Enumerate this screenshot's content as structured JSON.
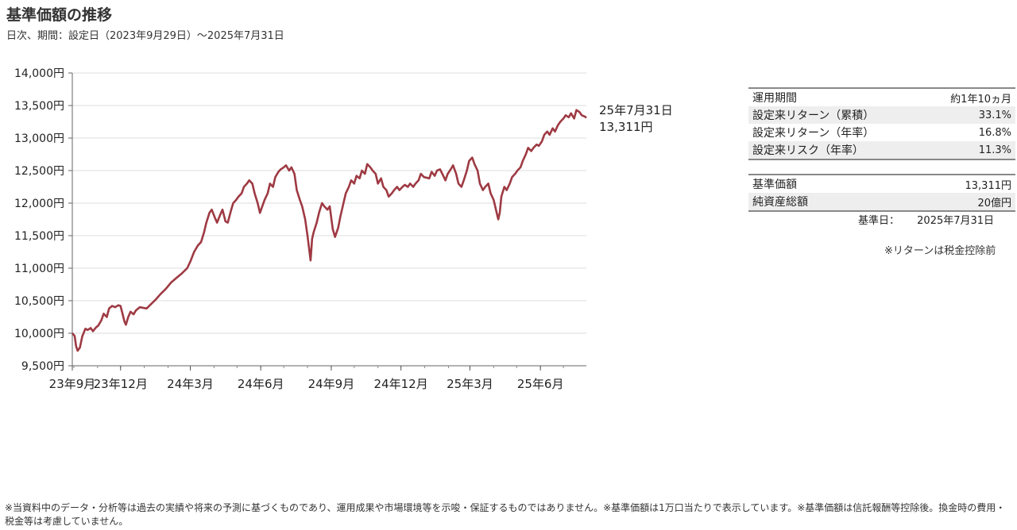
{
  "header": {
    "title": "基準価額の推移",
    "subtitle": "日次、期間：設定日（2023年9月29日）～2025年7月31日"
  },
  "chart_data": {
    "type": "line",
    "ylim": [
      9500,
      14000
    ],
    "yticks": [
      9500,
      10000,
      10500,
      11000,
      11500,
      12000,
      12500,
      13000,
      13500,
      14000
    ],
    "ytick_labels": [
      "9,500円",
      "10,000円",
      "10,500円",
      "11,000円",
      "11,500円",
      "12,000円",
      "12,500円",
      "13,000円",
      "13,500円",
      "14,000円"
    ],
    "xticks": [
      "23年9月",
      "23年12月",
      "24年3月",
      "24年6月",
      "24年9月",
      "24年12月",
      "25年3月",
      "25年6月"
    ],
    "x_start": "2023-09-29",
    "x_end": "2025-07-31",
    "line_color": "#9e3a43",
    "grid": true,
    "end_annotation": {
      "date": "25年7月31日",
      "value": "13,311円"
    },
    "series": [
      {
        "values": [
          [
            "2023-09-29",
            10000
          ],
          [
            "2023-10-02",
            9960
          ],
          [
            "2023-10-04",
            9800
          ],
          [
            "2023-10-06",
            9730
          ],
          [
            "2023-10-09",
            9780
          ],
          [
            "2023-10-12",
            9950
          ],
          [
            "2023-10-16",
            10070
          ],
          [
            "2023-10-19",
            10050
          ],
          [
            "2023-10-23",
            10080
          ],
          [
            "2023-10-26",
            10030
          ],
          [
            "2023-10-30",
            10090
          ],
          [
            "2023-11-02",
            10120
          ],
          [
            "2023-11-06",
            10200
          ],
          [
            "2023-11-09",
            10300
          ],
          [
            "2023-11-13",
            10250
          ],
          [
            "2023-11-16",
            10380
          ],
          [
            "2023-11-20",
            10420
          ],
          [
            "2023-11-24",
            10400
          ],
          [
            "2023-11-28",
            10430
          ],
          [
            "2023-12-01",
            10420
          ],
          [
            "2023-12-04",
            10280
          ],
          [
            "2023-12-06",
            10180
          ],
          [
            "2023-12-08",
            10130
          ],
          [
            "2023-12-11",
            10250
          ],
          [
            "2023-12-14",
            10330
          ],
          [
            "2023-12-18",
            10290
          ],
          [
            "2023-12-21",
            10350
          ],
          [
            "2023-12-26",
            10400
          ],
          [
            "2024-01-04",
            10380
          ],
          [
            "2024-01-10",
            10450
          ],
          [
            "2024-01-16",
            10520
          ],
          [
            "2024-01-22",
            10600
          ],
          [
            "2024-01-29",
            10680
          ],
          [
            "2024-02-05",
            10780
          ],
          [
            "2024-02-12",
            10850
          ],
          [
            "2024-02-19",
            10920
          ],
          [
            "2024-02-26",
            11000
          ],
          [
            "2024-03-01",
            11100
          ],
          [
            "2024-03-06",
            11250
          ],
          [
            "2024-03-11",
            11350
          ],
          [
            "2024-03-15",
            11400
          ],
          [
            "2024-03-19",
            11550
          ],
          [
            "2024-03-22",
            11700
          ],
          [
            "2024-03-26",
            11850
          ],
          [
            "2024-03-29",
            11900
          ],
          [
            "2024-04-02",
            11780
          ],
          [
            "2024-04-05",
            11700
          ],
          [
            "2024-04-09",
            11820
          ],
          [
            "2024-04-12",
            11900
          ],
          [
            "2024-04-16",
            11720
          ],
          [
            "2024-04-19",
            11700
          ],
          [
            "2024-04-23",
            11880
          ],
          [
            "2024-04-26",
            12000
          ],
          [
            "2024-04-30",
            12050
          ],
          [
            "2024-05-03",
            12100
          ],
          [
            "2024-05-07",
            12150
          ],
          [
            "2024-05-10",
            12250
          ],
          [
            "2024-05-14",
            12300
          ],
          [
            "2024-05-17",
            12350
          ],
          [
            "2024-05-21",
            12300
          ],
          [
            "2024-05-24",
            12150
          ],
          [
            "2024-05-28",
            12000
          ],
          [
            "2024-05-31",
            11850
          ],
          [
            "2024-06-03",
            11950
          ],
          [
            "2024-06-06",
            12050
          ],
          [
            "2024-06-10",
            12150
          ],
          [
            "2024-06-13",
            12300
          ],
          [
            "2024-06-17",
            12250
          ],
          [
            "2024-06-20",
            12400
          ],
          [
            "2024-06-24",
            12480
          ],
          [
            "2024-06-27",
            12520
          ],
          [
            "2024-07-01",
            12550
          ],
          [
            "2024-07-04",
            12580
          ],
          [
            "2024-07-08",
            12500
          ],
          [
            "2024-07-11",
            12550
          ],
          [
            "2024-07-15",
            12450
          ],
          [
            "2024-07-18",
            12200
          ],
          [
            "2024-07-22",
            12050
          ],
          [
            "2024-07-25",
            11950
          ],
          [
            "2024-07-29",
            11750
          ],
          [
            "2024-08-01",
            11500
          ],
          [
            "2024-08-05",
            11120
          ],
          [
            "2024-08-07",
            11450
          ],
          [
            "2024-08-09",
            11550
          ],
          [
            "2024-08-13",
            11700
          ],
          [
            "2024-08-16",
            11850
          ],
          [
            "2024-08-20",
            12000
          ],
          [
            "2024-08-23",
            11950
          ],
          [
            "2024-08-27",
            11900
          ],
          [
            "2024-08-30",
            11950
          ],
          [
            "2024-09-03",
            11600
          ],
          [
            "2024-09-06",
            11480
          ],
          [
            "2024-09-10",
            11620
          ],
          [
            "2024-09-13",
            11800
          ],
          [
            "2024-09-17",
            12000
          ],
          [
            "2024-09-20",
            12150
          ],
          [
            "2024-09-24",
            12250
          ],
          [
            "2024-09-27",
            12350
          ],
          [
            "2024-10-01",
            12300
          ],
          [
            "2024-10-04",
            12420
          ],
          [
            "2024-10-08",
            12380
          ],
          [
            "2024-10-11",
            12500
          ],
          [
            "2024-10-15",
            12450
          ],
          [
            "2024-10-18",
            12600
          ],
          [
            "2024-10-22",
            12550
          ],
          [
            "2024-10-25",
            12500
          ],
          [
            "2024-10-29",
            12450
          ],
          [
            "2024-11-01",
            12300
          ],
          [
            "2024-11-05",
            12380
          ],
          [
            "2024-11-08",
            12250
          ],
          [
            "2024-11-12",
            12200
          ],
          [
            "2024-11-15",
            12100
          ],
          [
            "2024-11-19",
            12150
          ],
          [
            "2024-11-22",
            12200
          ],
          [
            "2024-11-26",
            12250
          ],
          [
            "2024-11-29",
            12200
          ],
          [
            "2024-12-03",
            12250
          ],
          [
            "2024-12-06",
            12280
          ],
          [
            "2024-12-10",
            12250
          ],
          [
            "2024-12-13",
            12300
          ],
          [
            "2024-12-17",
            12250
          ],
          [
            "2024-12-20",
            12300
          ],
          [
            "2024-12-24",
            12350
          ],
          [
            "2024-12-27",
            12450
          ],
          [
            "2024-12-31",
            12400
          ],
          [
            "2025-01-07",
            12380
          ],
          [
            "2025-01-10",
            12480
          ],
          [
            "2025-01-14",
            12420
          ],
          [
            "2025-01-17",
            12500
          ],
          [
            "2025-01-21",
            12520
          ],
          [
            "2025-01-24",
            12450
          ],
          [
            "2025-01-28",
            12350
          ],
          [
            "2025-01-31",
            12450
          ],
          [
            "2025-02-04",
            12520
          ],
          [
            "2025-02-07",
            12580
          ],
          [
            "2025-02-11",
            12450
          ],
          [
            "2025-02-14",
            12300
          ],
          [
            "2025-02-18",
            12250
          ],
          [
            "2025-02-21",
            12350
          ],
          [
            "2025-02-25",
            12500
          ],
          [
            "2025-02-28",
            12650
          ],
          [
            "2025-03-04",
            12700
          ],
          [
            "2025-03-07",
            12600
          ],
          [
            "2025-03-11",
            12500
          ],
          [
            "2025-03-14",
            12300
          ],
          [
            "2025-03-18",
            12200
          ],
          [
            "2025-03-21",
            12250
          ],
          [
            "2025-03-25",
            12300
          ],
          [
            "2025-03-28",
            12150
          ],
          [
            "2025-04-01",
            12050
          ],
          [
            "2025-04-04",
            11900
          ],
          [
            "2025-04-07",
            11750
          ],
          [
            "2025-04-09",
            11850
          ],
          [
            "2025-04-11",
            12100
          ],
          [
            "2025-04-15",
            12250
          ],
          [
            "2025-04-18",
            12200
          ],
          [
            "2025-04-22",
            12300
          ],
          [
            "2025-04-25",
            12400
          ],
          [
            "2025-04-29",
            12450
          ],
          [
            "2025-05-02",
            12500
          ],
          [
            "2025-05-06",
            12550
          ],
          [
            "2025-05-09",
            12650
          ],
          [
            "2025-05-13",
            12750
          ],
          [
            "2025-05-16",
            12850
          ],
          [
            "2025-05-20",
            12800
          ],
          [
            "2025-05-23",
            12850
          ],
          [
            "2025-05-27",
            12900
          ],
          [
            "2025-05-30",
            12880
          ],
          [
            "2025-06-03",
            12950
          ],
          [
            "2025-06-06",
            13050
          ],
          [
            "2025-06-10",
            13100
          ],
          [
            "2025-06-13",
            13050
          ],
          [
            "2025-06-17",
            13150
          ],
          [
            "2025-06-20",
            13100
          ],
          [
            "2025-06-24",
            13200
          ],
          [
            "2025-06-27",
            13250
          ],
          [
            "2025-07-01",
            13300
          ],
          [
            "2025-07-04",
            13350
          ],
          [
            "2025-07-08",
            13320
          ],
          [
            "2025-07-11",
            13380
          ],
          [
            "2025-07-15",
            13300
          ],
          [
            "2025-07-18",
            13430
          ],
          [
            "2025-07-22",
            13400
          ],
          [
            "2025-07-25",
            13350
          ],
          [
            "2025-07-29",
            13330
          ],
          [
            "2025-07-31",
            13311
          ]
        ]
      }
    ]
  },
  "stats_table": [
    {
      "label": "運用期間",
      "value": "約1年10ヵ月"
    },
    {
      "label": "設定来リターン（累積）",
      "value": "33.1%"
    },
    {
      "label": "設定来リターン（年率）",
      "value": "16.8%"
    },
    {
      "label": "設定来リスク（年率）",
      "value": "11.3%"
    }
  ],
  "nav_table": [
    {
      "label": "基準価額",
      "value": "13,311円"
    },
    {
      "label": "純資産総額",
      "value": "20億円"
    }
  ],
  "as_of": {
    "label": "基準日：",
    "value": "2025年7月31日"
  },
  "return_note": "※リターンは税金控除前",
  "footer": "※当資料中のデータ・分析等は過去の実績や将来の予測に基づくものであり、運用成果や市場環境等を示唆・保証するものではありません。※基準価額は1万口当たりで表示しています。※基準価額は信託報酬等控除後。換金時の費用・税金等は考慮していません。"
}
